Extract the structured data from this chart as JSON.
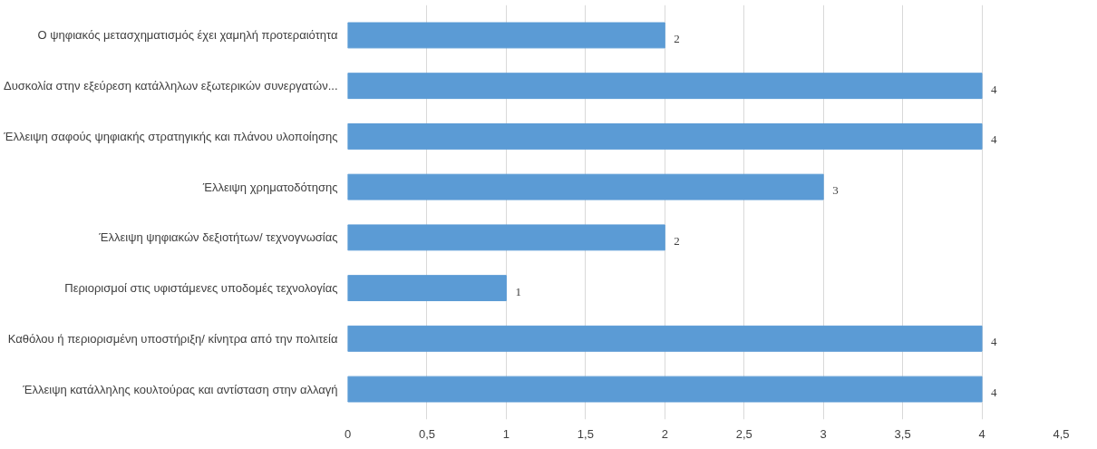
{
  "chart_data": {
    "type": "bar",
    "orientation": "horizontal",
    "categories": [
      "Ο ψηφιακός μετασχηματισμός έχει χαμηλή προτεραιότητα",
      "Δυσκολία στην εξεύρεση κατάλληλων εξωτερικών συνεργατών...",
      "Έλλειψη σαφούς ψηφιακής στρατηγικής και πλάνου υλοποίησης",
      "Έλλειψη χρηματοδότησης",
      "Έλλειψη ψηφιακών δεξιοτήτων/ τεχνογνωσίας",
      "Περιορισμοί στις υφιστάμενες υποδομές τεχνολογίας",
      "Καθόλου ή περιορισμένη υποστήριξη/ κίνητρα από την πολιτεία",
      "Έλλειψη κατάλληλης κουλτούρας και αντίσταση στην αλλαγή"
    ],
    "values": [
      2,
      4,
      4,
      3,
      2,
      1,
      4,
      4
    ],
    "color": "#5b9bd5",
    "xlim": [
      0,
      4.5
    ],
    "xticks": [
      0,
      {
        "value": 0.5,
        "label": "0,5"
      },
      1,
      {
        "value": 1.5,
        "label": "1,5"
      },
      2,
      {
        "value": 2.5,
        "label": "2,5"
      },
      3,
      {
        "value": 3.5,
        "label": "3,5"
      },
      4,
      {
        "value": 4.5,
        "label": "4,5"
      }
    ],
    "grid": "x",
    "data_labels": true
  }
}
